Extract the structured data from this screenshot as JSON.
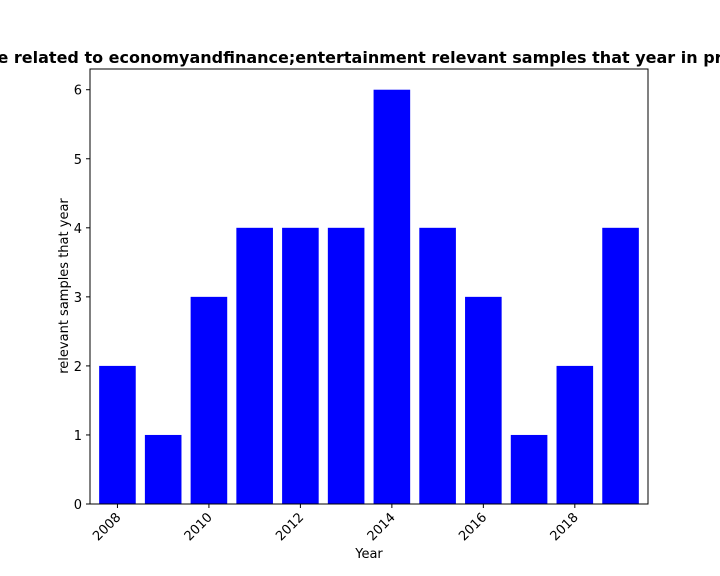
{
  "chart_data": {
    "type": "bar",
    "title": "e related to economyandfinance;entertainment relevant samples that year in pr",
    "xlabel": "Year",
    "ylabel": "relevant samples that year",
    "categories": [
      2008,
      2009,
      2010,
      2011,
      2012,
      2013,
      2014,
      2015,
      2016,
      2017,
      2018,
      2019
    ],
    "values": [
      2,
      1,
      3,
      4,
      4,
      4,
      6,
      4,
      3,
      1,
      2,
      4
    ],
    "bar_color": "#0000ff",
    "xticks": [
      "2008",
      "2010",
      "2012",
      "2014",
      "2016",
      "2018"
    ],
    "yticks": [
      "0",
      "1",
      "2",
      "3",
      "4",
      "5",
      "6"
    ],
    "ylim": [
      0,
      6.3
    ],
    "xlim": [
      2007.4,
      2019.6
    ],
    "grid": false
  }
}
